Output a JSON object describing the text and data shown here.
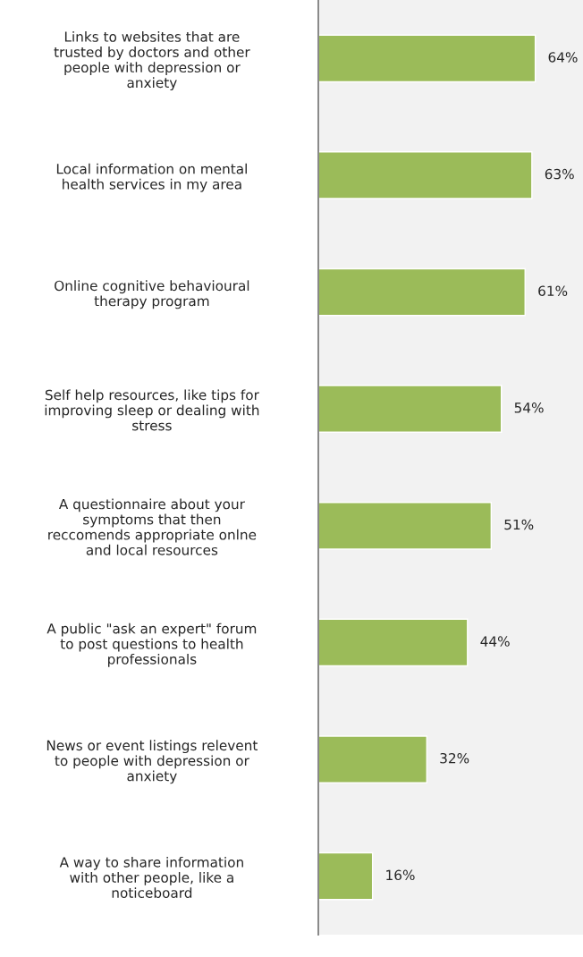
{
  "chart_data": {
    "type": "bar",
    "orientation": "horizontal",
    "categories": [
      "Links to websites that are\ntrusted by doctors and other\npeople with depression or\nanxiety",
      "Local information on mental\nhealth services in my area",
      "Online cognitive behavioural\ntherapy program",
      "Self help resources, like tips for\nimproving sleep or dealing with\nstress",
      "A questionnaire about your\nsymptoms that then\nreccomends appropriate onlne\nand local resources",
      "A public \"ask an expert\" forum\nto post questions to health\nprofessionals",
      "News or event listings relevent\nto people with depression or\nanxiety",
      "A way to share information\nwith other people, like a\nnoticeboard"
    ],
    "values": [
      64,
      63,
      61,
      54,
      51,
      44,
      32,
      16
    ],
    "value_labels": [
      "64%",
      "63%",
      "61%",
      "54%",
      "51%",
      "44%",
      "32%",
      "16%"
    ],
    "color": "#9bbb59",
    "grid": false,
    "legend": false
  }
}
